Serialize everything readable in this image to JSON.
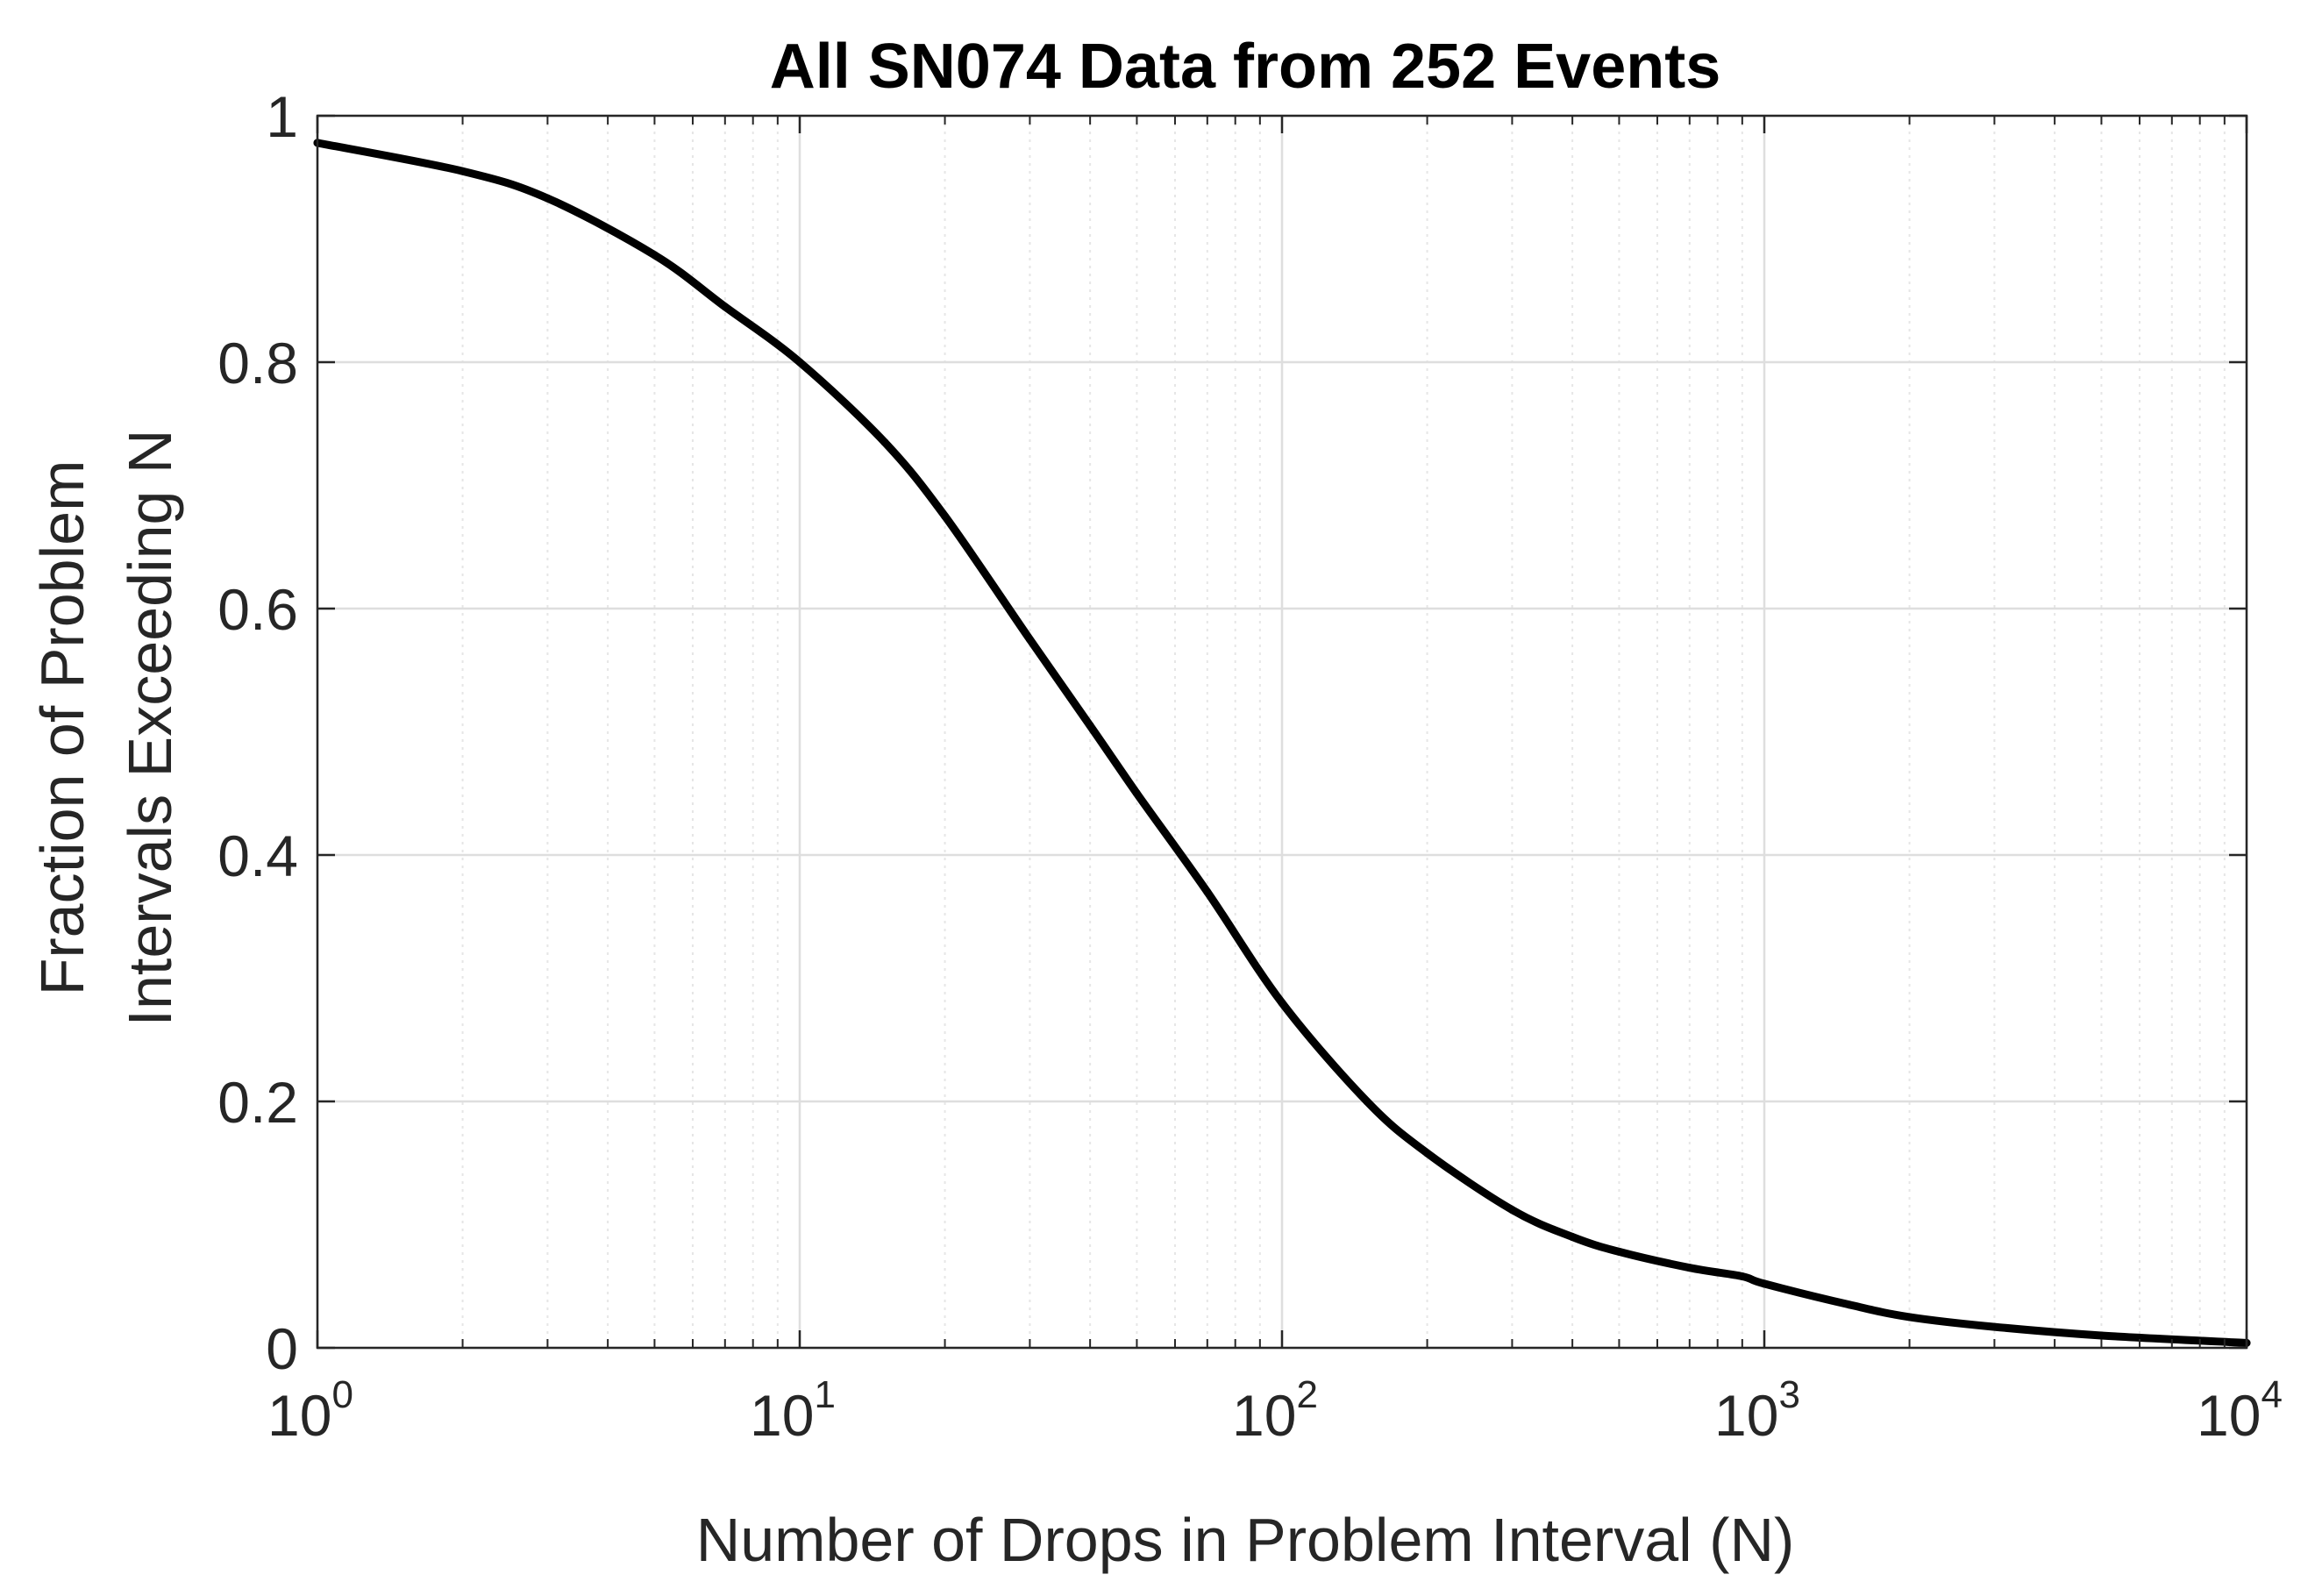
{
  "chart_data": {
    "type": "line",
    "title": "All SN074 Data from 252 Events",
    "xlabel": "Number of Drops in Problem Interval (N)",
    "ylabel_line1": "Fraction of Problem",
    "ylabel_line2": "Intervals Exceeding N",
    "xscale": "log",
    "xlim": [
      1,
      10000
    ],
    "ylim": [
      0,
      1
    ],
    "grid": true,
    "minor_grid_x": true,
    "x_ticks": [
      {
        "base": "10",
        "exp": "0",
        "value": 1
      },
      {
        "base": "10",
        "exp": "1",
        "value": 10
      },
      {
        "base": "10",
        "exp": "2",
        "value": 100
      },
      {
        "base": "10",
        "exp": "3",
        "value": 1000
      },
      {
        "base": "10",
        "exp": "4",
        "value": 10000
      }
    ],
    "y_ticks": [
      {
        "label": "0",
        "value": 0
      },
      {
        "label": "0.2",
        "value": 0.2
      },
      {
        "label": "0.4",
        "value": 0.4
      },
      {
        "label": "0.6",
        "value": 0.6
      },
      {
        "label": "0.8",
        "value": 0.8
      },
      {
        "label": "1",
        "value": 1
      }
    ],
    "series": [
      {
        "name": "SN074",
        "color": "#000000",
        "x": [
          1,
          2,
          3,
          5,
          7,
          10,
          15,
          20,
          30,
          40,
          50,
          70,
          100,
          150,
          200,
          300,
          400,
          500,
          700,
          900,
          1000,
          1500,
          2000,
          3000,
          5000,
          10000
        ],
        "y": [
          0.978,
          0.955,
          0.933,
          0.887,
          0.845,
          0.8,
          0.735,
          0.675,
          0.575,
          0.505,
          0.45,
          0.37,
          0.28,
          0.2,
          0.158,
          0.112,
          0.09,
          0.078,
          0.065,
          0.058,
          0.052,
          0.035,
          0.025,
          0.017,
          0.01,
          0.004
        ]
      }
    ],
    "colors": {
      "axes": "#262626",
      "grid_major": "#dedede",
      "grid_minor": "#e6e6e6",
      "line": "#000000"
    }
  }
}
